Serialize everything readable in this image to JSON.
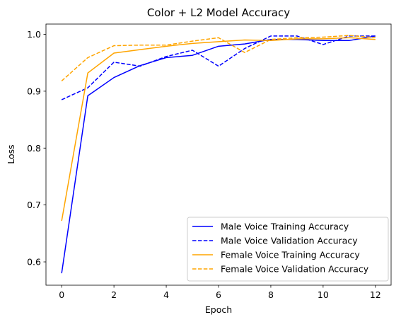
{
  "chart_data": {
    "type": "line",
    "title": "Color + L2 Model Accuracy",
    "xlabel": "Epoch",
    "ylabel": "Loss",
    "xlim": [
      -0.6,
      12.6
    ],
    "ylim": [
      0.559,
      1.018
    ],
    "xticks": [
      0,
      2,
      4,
      6,
      8,
      10,
      12
    ],
    "yticks": [
      0.6,
      0.7,
      0.8,
      0.9,
      1.0
    ],
    "ytick_labels": [
      "0.6",
      "0.7",
      "0.8",
      "0.9",
      "1.0"
    ],
    "x": [
      0,
      1,
      2,
      3,
      4,
      5,
      6,
      7,
      8,
      9,
      10,
      11,
      12
    ],
    "legend_position": "lower-right",
    "grid": false,
    "series": [
      {
        "name": "Male Voice Training Accuracy",
        "color": "#0000ff",
        "style": "solid",
        "values": [
          0.58,
          0.892,
          0.924,
          0.945,
          0.959,
          0.963,
          0.979,
          0.983,
          0.991,
          0.991,
          0.989,
          0.989,
          0.997
        ]
      },
      {
        "name": "Male Voice Validation Accuracy",
        "color": "#0000ff",
        "style": "dashed",
        "values": [
          0.885,
          0.906,
          0.951,
          0.944,
          0.961,
          0.972,
          0.944,
          0.975,
          0.997,
          0.997,
          0.982,
          0.997,
          0.997
        ]
      },
      {
        "name": "Female Voice Training Accuracy",
        "color": "#ffa500",
        "style": "solid",
        "values": [
          0.672,
          0.932,
          0.967,
          0.973,
          0.979,
          0.984,
          0.987,
          0.99,
          0.989,
          0.992,
          0.992,
          0.994,
          0.991
        ]
      },
      {
        "name": "Female Voice Validation Accuracy",
        "color": "#ffa500",
        "style": "dashed",
        "values": [
          0.918,
          0.959,
          0.98,
          0.981,
          0.981,
          0.988,
          0.994,
          0.968,
          0.991,
          0.994,
          0.995,
          0.998,
          0.994
        ]
      }
    ]
  }
}
